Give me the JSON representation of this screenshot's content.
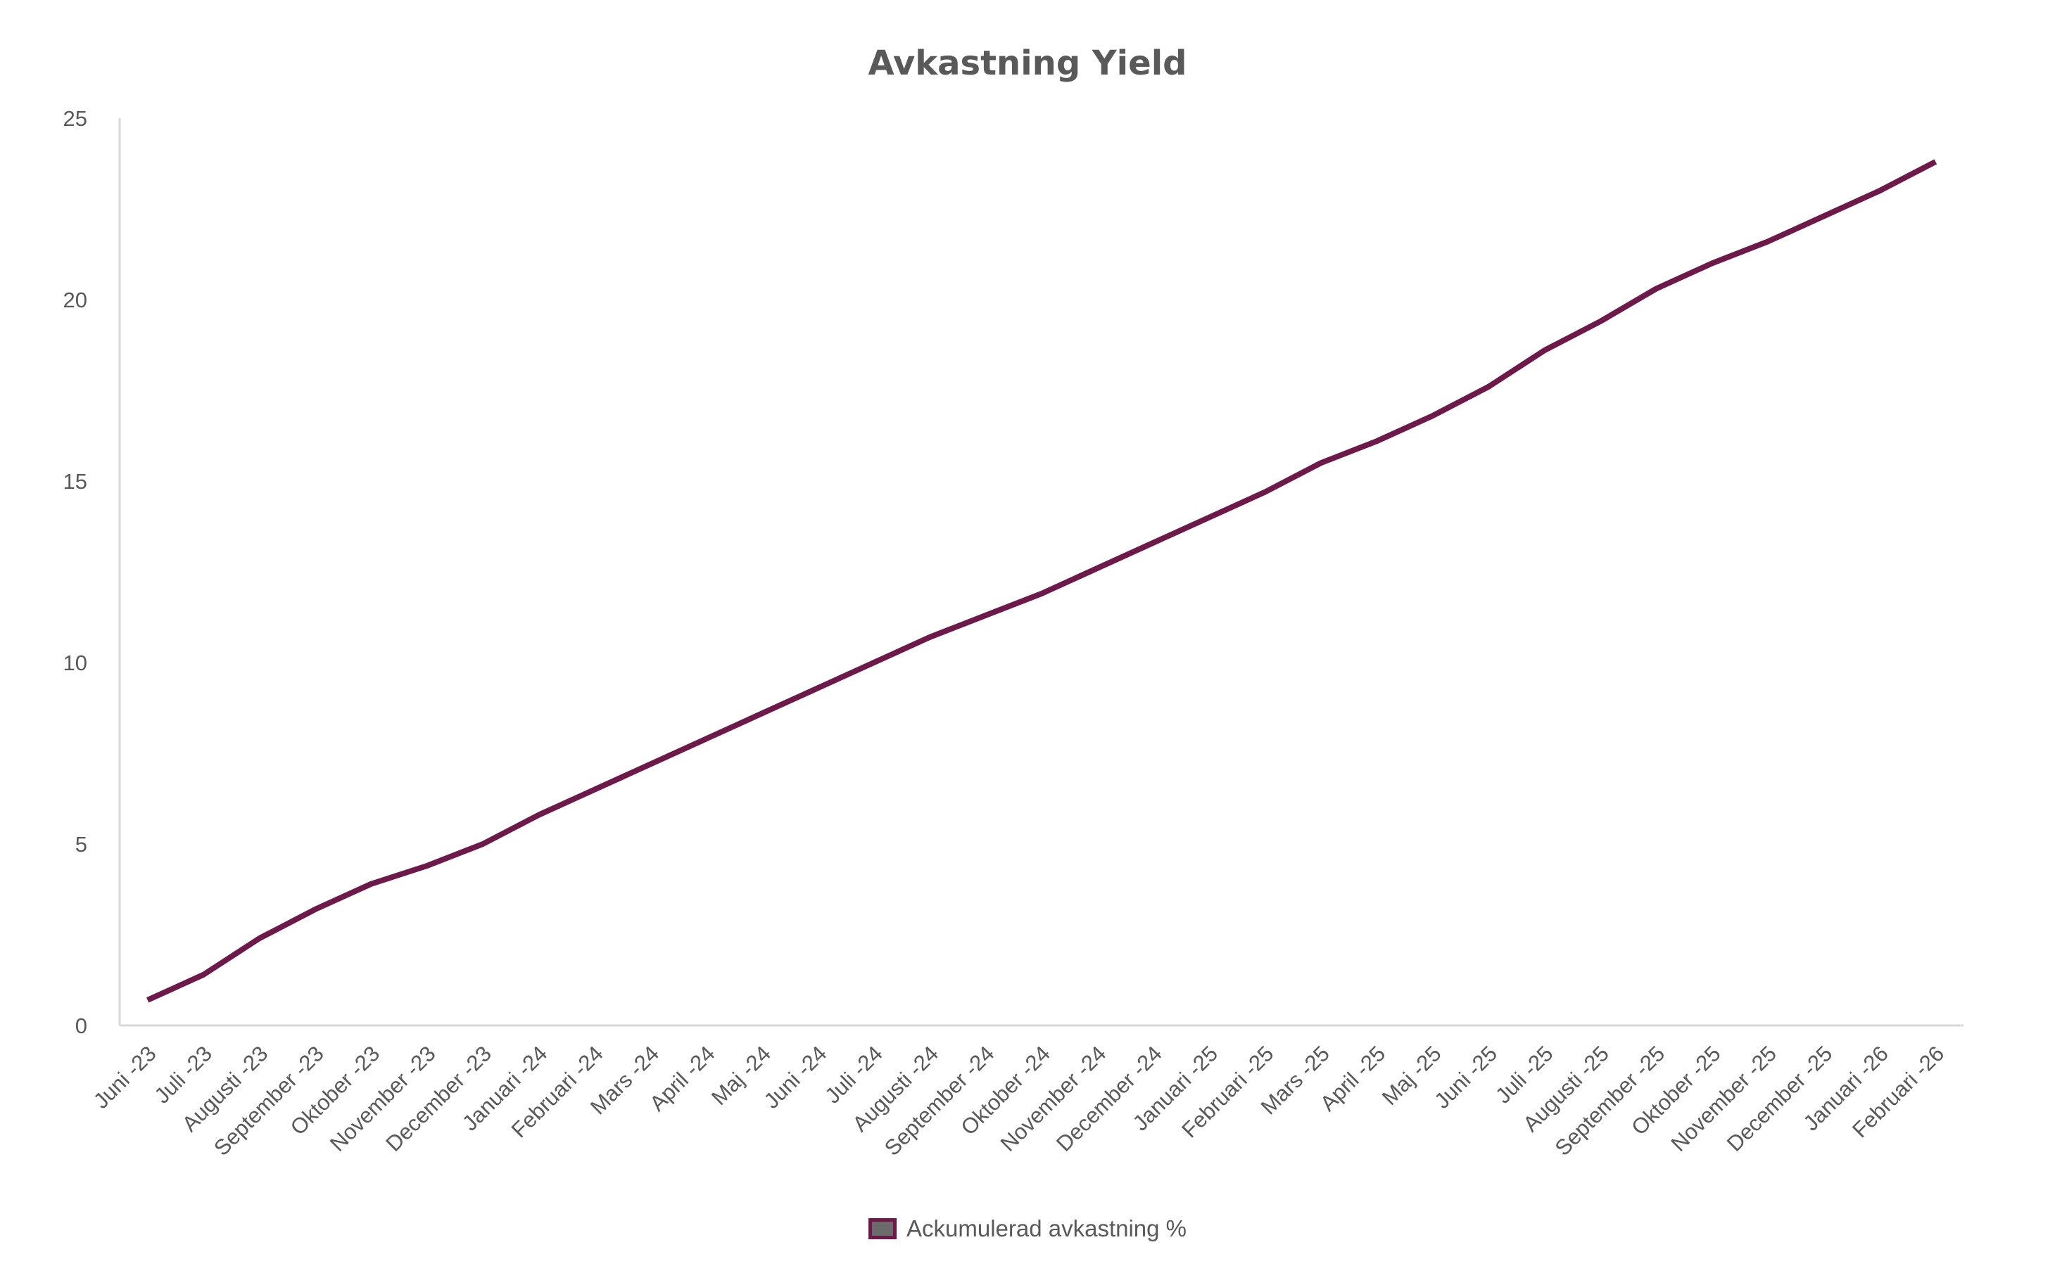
{
  "chart_data": {
    "type": "line",
    "title": "Avkastning Yield",
    "xlabel": "",
    "ylabel": "",
    "ylim": [
      0,
      25
    ],
    "yticks": [
      0,
      5,
      10,
      15,
      20,
      25
    ],
    "grid": false,
    "legend_position": "bottom",
    "categories": [
      "Juni -23",
      "Juli -23",
      "Augusti -23",
      "September -23",
      "Oktober -23",
      "November -23",
      "December -23",
      "Januari -24",
      "Februari -24",
      "Mars -24",
      "April -24",
      "Maj -24",
      "Juni -24",
      "Juli -24",
      "Augusti -24",
      "September -24",
      "Oktober -24",
      "November -24",
      "December -24",
      "Januari -25",
      "Februari -25",
      "Mars -25",
      "April -25",
      "Maj -25",
      "Juni -25",
      "Juli -25",
      "Augusti -25",
      "September -25",
      "Oktober -25",
      "November -25",
      "December -25",
      "Januari -26",
      "Februari -26"
    ],
    "series": [
      {
        "name": "Ackumulerad avkastning %",
        "color": "#6d1a4a",
        "values": [
          0.7,
          1.4,
          2.4,
          3.2,
          3.9,
          4.4,
          5.0,
          5.8,
          6.5,
          7.2,
          7.9,
          8.6,
          9.3,
          10.0,
          10.7,
          11.3,
          11.9,
          12.6,
          13.3,
          14.0,
          14.7,
          15.5,
          16.1,
          16.8,
          17.6,
          18.6,
          19.4,
          20.3,
          21.0,
          21.6,
          22.3,
          23.0,
          23.8
        ]
      }
    ]
  },
  "legend": {
    "label": "Ackumulerad avkastning %",
    "swatch_fill": "#6b6b6b",
    "swatch_border": "#6d1a4a"
  }
}
